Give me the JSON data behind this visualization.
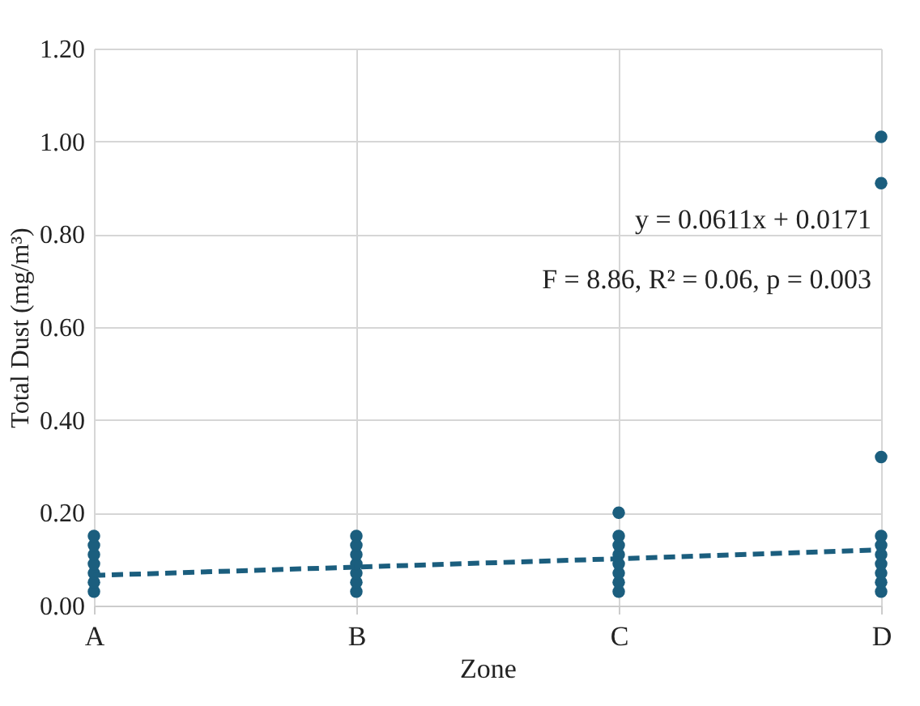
{
  "chart_data": {
    "type": "scatter",
    "xlabel": "Zone",
    "ylabel": "Total Dust (mg/m³)",
    "categories": [
      "A",
      "B",
      "C",
      "D"
    ],
    "series": [
      {
        "color": "#1b5e7e",
        "marker": "circle",
        "x": [
          "A",
          "A",
          "A",
          "A",
          "A",
          "A",
          "A",
          "B",
          "B",
          "B",
          "B",
          "B",
          "B",
          "B",
          "C",
          "C",
          "C",
          "C",
          "C",
          "C",
          "C",
          "C",
          "D",
          "D",
          "D",
          "D",
          "D",
          "D",
          "D",
          "D",
          "D",
          "D"
        ],
        "values": [
          0.03,
          0.05,
          0.07,
          0.09,
          0.11,
          0.13,
          0.15,
          0.03,
          0.05,
          0.07,
          0.09,
          0.11,
          0.13,
          0.15,
          0.03,
          0.05,
          0.07,
          0.09,
          0.11,
          0.13,
          0.15,
          0.2,
          0.03,
          0.05,
          0.07,
          0.09,
          0.11,
          0.13,
          0.15,
          0.32,
          0.91,
          1.01
        ]
      },
      {
        "type": "line",
        "color": "#1b5e7e",
        "line_style": "dashed",
        "x": [
          "A",
          "B",
          "C",
          "D"
        ],
        "values": [
          0.065,
          0.083,
          0.101,
          0.12
        ]
      }
    ],
    "ylim": [
      0,
      1.2
    ],
    "yticks": [
      {
        "value": 0,
        "label": "0.00"
      },
      {
        "value": 0.2,
        "label": "0.20"
      },
      {
        "value": 0.4,
        "label": "0.40"
      },
      {
        "value": 0.6,
        "label": "0.60"
      },
      {
        "value": 0.8,
        "label": "0.80"
      },
      {
        "value": 1,
        "label": "1.00"
      },
      {
        "value": 1.2,
        "label": "1.20"
      }
    ],
    "grid": true,
    "annotations": [
      "y = 0.0611x + 0.0171",
      "F = 8.86, R² = 0.06, p = 0.003"
    ]
  }
}
